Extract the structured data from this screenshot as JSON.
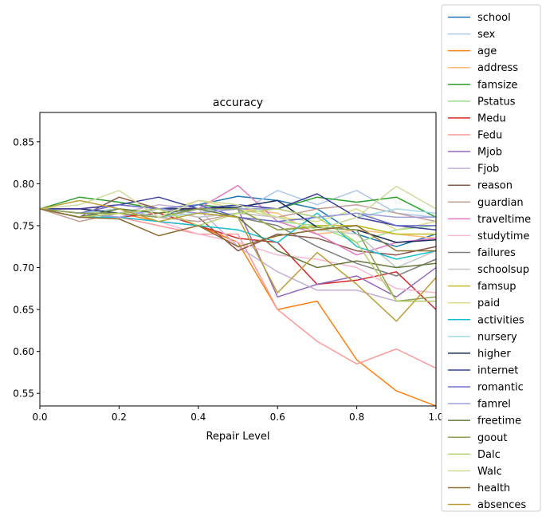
{
  "chart_data": {
    "type": "line",
    "title": "accuracy",
    "xlabel": "Repair Level",
    "ylabel": "",
    "xlim": [
      0.0,
      1.0
    ],
    "ylim": [
      0.535,
      0.885
    ],
    "x_ticks": [
      "0.0",
      "0.2",
      "0.4",
      "0.6",
      "0.8",
      "1.0"
    ],
    "y_ticks": [
      "0.55",
      "0.60",
      "0.65",
      "0.70",
      "0.75",
      "0.80",
      "0.85"
    ],
    "grid": false,
    "legend_position": "right, outside",
    "x": [
      0.0,
      0.1,
      0.2,
      0.3,
      0.4,
      0.5,
      0.6,
      0.7,
      0.8,
      0.9,
      1.0
    ],
    "series": [
      {
        "name": "school",
        "color": "#1f77b4",
        "values": [
          0.77,
          0.765,
          0.77,
          0.76,
          0.775,
          0.785,
          0.78,
          0.77,
          0.74,
          0.725,
          0.74
        ]
      },
      {
        "name": "sex",
        "color": "#aec7e8",
        "values": [
          0.77,
          0.76,
          0.765,
          0.77,
          0.76,
          0.765,
          0.792,
          0.775,
          0.792,
          0.765,
          0.76
        ]
      },
      {
        "name": "age",
        "color": "#ff7f0e",
        "values": [
          0.77,
          0.76,
          0.765,
          0.755,
          0.75,
          0.73,
          0.65,
          0.66,
          0.59,
          0.553,
          0.535
        ]
      },
      {
        "name": "address",
        "color": "#ffbb78",
        "values": [
          0.77,
          0.77,
          0.775,
          0.77,
          0.765,
          0.77,
          0.765,
          0.74,
          0.745,
          0.74,
          0.735
        ]
      },
      {
        "name": "famsize",
        "color": "#2ca02c",
        "values": [
          0.77,
          0.784,
          0.778,
          0.77,
          0.775,
          0.77,
          0.77,
          0.784,
          0.778,
          0.784,
          0.76
        ]
      },
      {
        "name": "Pstatus",
        "color": "#98df8a",
        "values": [
          0.77,
          0.765,
          0.77,
          0.76,
          0.765,
          0.76,
          0.755,
          0.75,
          0.73,
          0.745,
          0.75
        ]
      },
      {
        "name": "Medu",
        "color": "#d62728",
        "values": [
          0.77,
          0.765,
          0.76,
          0.765,
          0.75,
          0.735,
          0.73,
          0.68,
          0.685,
          0.695,
          0.65
        ]
      },
      {
        "name": "Fedu",
        "color": "#ff9896",
        "values": [
          0.77,
          0.76,
          0.76,
          0.75,
          0.74,
          0.74,
          0.65,
          0.612,
          0.585,
          0.603,
          0.58
        ]
      },
      {
        "name": "Mjob",
        "color": "#9467bd",
        "values": [
          0.77,
          0.765,
          0.77,
          0.76,
          0.77,
          0.77,
          0.665,
          0.68,
          0.69,
          0.665,
          0.7
        ]
      },
      {
        "name": "Fjob",
        "color": "#c5b0d5",
        "values": [
          0.77,
          0.76,
          0.765,
          0.775,
          0.77,
          0.725,
          0.695,
          0.673,
          0.673,
          0.66,
          0.66
        ]
      },
      {
        "name": "reason",
        "color": "#8c564b",
        "values": [
          0.77,
          0.76,
          0.784,
          0.77,
          0.76,
          0.72,
          0.74,
          0.735,
          0.72,
          0.715,
          0.725
        ]
      },
      {
        "name": "guardian",
        "color": "#c49c94",
        "values": [
          0.77,
          0.755,
          0.765,
          0.76,
          0.755,
          0.765,
          0.76,
          0.77,
          0.775,
          0.765,
          0.755
        ]
      },
      {
        "name": "traveltime",
        "color": "#e377c2",
        "values": [
          0.77,
          0.77,
          0.775,
          0.77,
          0.77,
          0.798,
          0.755,
          0.74,
          0.715,
          0.73,
          0.735
        ]
      },
      {
        "name": "studytime",
        "color": "#f7b6d2",
        "values": [
          0.77,
          0.765,
          0.76,
          0.755,
          0.74,
          0.73,
          0.715,
          0.71,
          0.7,
          0.675,
          0.67
        ]
      },
      {
        "name": "failures",
        "color": "#7f7f7f",
        "values": [
          0.77,
          0.765,
          0.77,
          0.76,
          0.765,
          0.76,
          0.75,
          0.725,
          0.705,
          0.69,
          0.71
        ]
      },
      {
        "name": "schoolsup",
        "color": "#c7c7c7",
        "values": [
          0.77,
          0.765,
          0.76,
          0.77,
          0.76,
          0.765,
          0.76,
          0.745,
          0.74,
          0.7,
          0.72
        ]
      },
      {
        "name": "famsup",
        "color": "#bcbd22",
        "values": [
          0.77,
          0.76,
          0.765,
          0.76,
          0.765,
          0.77,
          0.745,
          0.75,
          0.75,
          0.74,
          0.74
        ]
      },
      {
        "name": "paid",
        "color": "#dbdb8d",
        "values": [
          0.77,
          0.765,
          0.77,
          0.765,
          0.78,
          0.77,
          0.76,
          0.755,
          0.77,
          0.745,
          0.755
        ]
      },
      {
        "name": "activities",
        "color": "#17becf",
        "values": [
          0.77,
          0.76,
          0.76,
          0.755,
          0.75,
          0.745,
          0.73,
          0.765,
          0.725,
          0.71,
          0.72
        ]
      },
      {
        "name": "nursery",
        "color": "#9edae5",
        "values": [
          0.77,
          0.765,
          0.77,
          0.76,
          0.765,
          0.775,
          0.76,
          0.745,
          0.76,
          0.77,
          0.765
        ]
      },
      {
        "name": "higher",
        "color": "#1b2a5c",
        "values": [
          0.77,
          0.77,
          0.765,
          0.77,
          0.77,
          0.772,
          0.78,
          0.748,
          0.745,
          0.73,
          0.733
        ]
      },
      {
        "name": "internet",
        "color": "#3c3f9a",
        "values": [
          0.77,
          0.77,
          0.775,
          0.784,
          0.77,
          0.775,
          0.77,
          0.788,
          0.76,
          0.75,
          0.745
        ]
      },
      {
        "name": "romantic",
        "color": "#6b6ecf",
        "values": [
          0.77,
          0.765,
          0.775,
          0.77,
          0.775,
          0.76,
          0.755,
          0.76,
          0.765,
          0.75,
          0.75
        ]
      },
      {
        "name": "famrel",
        "color": "#9c9ede",
        "values": [
          0.77,
          0.765,
          0.76,
          0.77,
          0.765,
          0.77,
          0.77,
          0.76,
          0.765,
          0.76,
          0.76
        ]
      },
      {
        "name": "freetime",
        "color": "#637939",
        "values": [
          0.77,
          0.76,
          0.77,
          0.765,
          0.77,
          0.76,
          0.72,
          0.7,
          0.708,
          0.7,
          0.705
        ]
      },
      {
        "name": "goout",
        "color": "#8ca252",
        "values": [
          0.77,
          0.765,
          0.765,
          0.76,
          0.77,
          0.77,
          0.745,
          0.748,
          0.745,
          0.66,
          0.665
        ]
      },
      {
        "name": "Dalc",
        "color": "#b5cf6b",
        "values": [
          0.77,
          0.76,
          0.765,
          0.77,
          0.75,
          0.765,
          0.77,
          0.76,
          0.73,
          0.66,
          0.66
        ]
      },
      {
        "name": "Walc",
        "color": "#cedb9c",
        "values": [
          0.77,
          0.775,
          0.792,
          0.76,
          0.78,
          0.775,
          0.76,
          0.745,
          0.76,
          0.797,
          0.77
        ]
      },
      {
        "name": "health",
        "color": "#8c6d31",
        "values": [
          0.77,
          0.76,
          0.758,
          0.738,
          0.75,
          0.725,
          0.738,
          0.745,
          0.75,
          0.72,
          0.72
        ]
      },
      {
        "name": "absences",
        "color": "#bd9e39",
        "values": [
          0.77,
          0.78,
          0.77,
          0.755,
          0.765,
          0.76,
          0.67,
          0.718,
          0.68,
          0.636,
          0.688
        ]
      }
    ]
  }
}
